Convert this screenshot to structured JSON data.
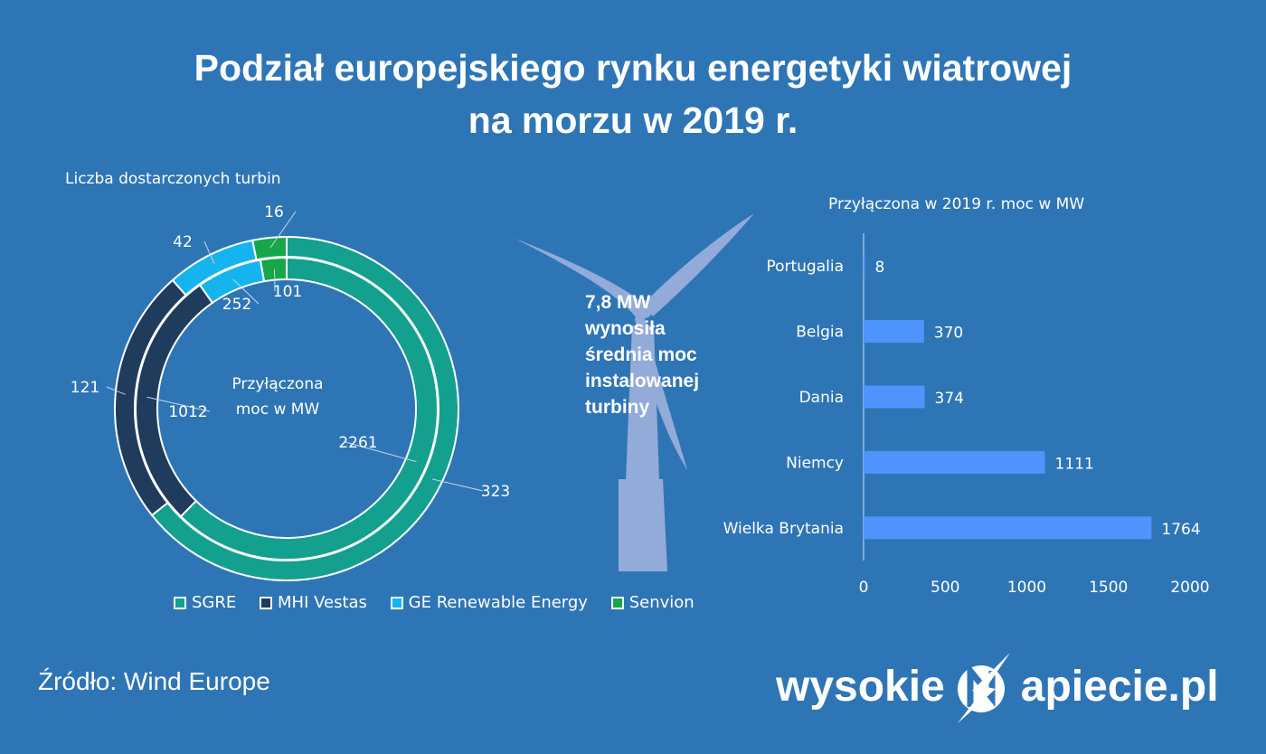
{
  "title_line1": "Podział europejskiego rynku energetyki wiatrowej",
  "title_line2": "na morzu w 2019 r.",
  "source": "Źródło: Wind Europe",
  "logo": {
    "left": "wysokie",
    "right": "apiecie.pl"
  },
  "turbine_note": [
    "7,8 MW",
    "wynosiła",
    "średnia moc",
    "instalowanej",
    "turbiny"
  ],
  "colors": {
    "background": "#2e75b6",
    "SGRE": "#13a08e",
    "MHI Vestas": "#1f3c5d",
    "GE Renewable Energy": "#15b4ef",
    "Senvion": "#17a74a",
    "bar": "#4f94ff"
  },
  "chart_data": [
    {
      "type": "doughnut",
      "title": "Liczba dostarczonych turbin",
      "center_label": [
        "Przyłączona",
        "moc w MW"
      ],
      "categories": [
        "SGRE",
        "MHI Vestas",
        "GE Renewable Energy",
        "Senvion"
      ],
      "series": [
        {
          "name": "Liczba dostarczonych turbin",
          "ring": "outer",
          "values": [
            323,
            121,
            42,
            16
          ]
        },
        {
          "name": "Przyłączona moc w MW",
          "ring": "inner",
          "values": [
            2261,
            1012,
            252,
            101
          ]
        }
      ],
      "legend": "bottom"
    },
    {
      "type": "bar",
      "orientation": "horizontal",
      "title": "Przyłączona w 2019 r. moc w MW",
      "categories": [
        "Portugalia",
        "Belgia",
        "Dania",
        "Niemcy",
        "Wielka Brytania"
      ],
      "values": [
        8,
        370,
        374,
        1111,
        1764
      ],
      "xlim": [
        0,
        2000
      ],
      "xticks": [
        0,
        500,
        1000,
        1500,
        2000
      ]
    }
  ]
}
